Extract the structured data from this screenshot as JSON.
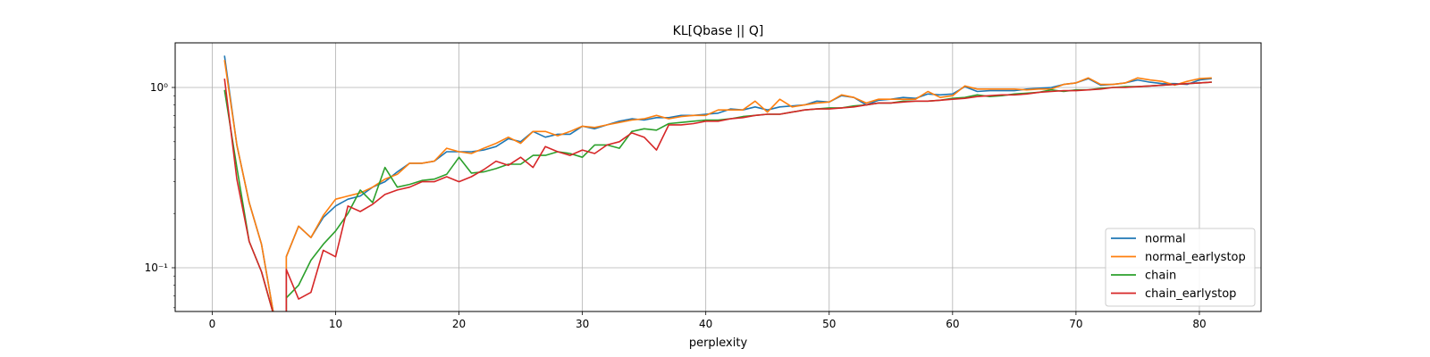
{
  "chart_data": {
    "type": "line",
    "title": "KL[Qbase || Q]",
    "xlabel": "perplexity",
    "ylabel": "",
    "yscale": "log",
    "xlim": [
      -3,
      85
    ],
    "ylim": [
      0.058,
      1.8
    ],
    "xticks": [
      0,
      10,
      20,
      30,
      40,
      50,
      60,
      70,
      80
    ],
    "xtick_labels": [
      "0",
      "10",
      "20",
      "30",
      "40",
      "50",
      "60",
      "70",
      "80"
    ],
    "yticks": [
      0.1,
      1
    ],
    "ytick_labels": [
      "10⁻¹",
      "10⁰"
    ],
    "grid": true,
    "legend_position": "lower-right",
    "x": [
      1,
      2,
      3,
      4,
      5,
      6,
      7,
      8,
      9,
      10,
      11,
      12,
      13,
      14,
      15,
      16,
      17,
      18,
      19,
      20,
      21,
      22,
      23,
      24,
      25,
      26,
      27,
      28,
      29,
      30,
      31,
      32,
      33,
      34,
      35,
      36,
      37,
      38,
      39,
      40,
      41,
      42,
      43,
      44,
      45,
      46,
      47,
      48,
      49,
      50,
      51,
      52,
      53,
      54,
      55,
      56,
      57,
      58,
      59,
      60,
      61,
      62,
      63,
      64,
      65,
      66,
      67,
      68,
      69,
      70,
      71,
      72,
      73,
      74,
      75,
      76,
      77,
      78,
      79,
      80,
      81
    ],
    "series": [
      {
        "name": "normal",
        "color": "#1f77b4",
        "values": [
          1.5,
          0.48,
          0.23,
          0.135,
          null,
          0.115,
          0.17,
          0.147,
          0.19,
          0.22,
          0.24,
          0.25,
          0.28,
          0.3,
          0.34,
          0.38,
          0.38,
          0.39,
          0.44,
          0.44,
          0.44,
          0.45,
          0.47,
          0.52,
          0.5,
          0.57,
          0.53,
          0.55,
          0.55,
          0.61,
          0.59,
          0.62,
          0.65,
          0.67,
          0.66,
          0.68,
          0.68,
          0.7,
          0.7,
          0.71,
          0.72,
          0.76,
          0.75,
          0.78,
          0.75,
          0.78,
          0.79,
          0.8,
          0.84,
          0.83,
          0.9,
          0.88,
          0.8,
          0.85,
          0.86,
          0.88,
          0.87,
          0.92,
          0.91,
          0.92,
          1.01,
          0.95,
          0.96,
          0.96,
          0.96,
          0.98,
          0.99,
          1.0,
          1.04,
          1.06,
          1.12,
          1.03,
          1.04,
          1.06,
          1.1,
          1.07,
          1.05,
          1.05,
          1.04,
          1.1,
          1.12
        ]
      },
      {
        "name": "normal_earlystop",
        "color": "#ff7f0e",
        "values": [
          1.42,
          0.48,
          0.23,
          0.135,
          null,
          0.115,
          0.17,
          0.147,
          0.195,
          0.24,
          0.25,
          0.26,
          0.28,
          0.31,
          0.33,
          0.38,
          0.38,
          0.39,
          0.46,
          0.44,
          0.43,
          0.46,
          0.49,
          0.53,
          0.49,
          0.57,
          0.57,
          0.54,
          0.57,
          0.61,
          0.6,
          0.62,
          0.64,
          0.66,
          0.67,
          0.7,
          0.67,
          0.69,
          0.7,
          0.7,
          0.75,
          0.75,
          0.75,
          0.84,
          0.73,
          0.86,
          0.78,
          0.8,
          0.82,
          0.83,
          0.91,
          0.88,
          0.82,
          0.86,
          0.86,
          0.86,
          0.86,
          0.95,
          0.88,
          0.9,
          1.02,
          0.98,
          0.98,
          0.98,
          0.98,
          0.97,
          0.98,
          0.98,
          1.04,
          1.06,
          1.13,
          1.04,
          1.04,
          1.06,
          1.13,
          1.1,
          1.08,
          1.03,
          1.08,
          1.12,
          1.13
        ]
      },
      {
        "name": "chain",
        "color": "#2ca02c",
        "values": [
          0.97,
          0.36,
          0.14,
          0.095,
          null,
          0.068,
          0.08,
          0.11,
          0.135,
          0.16,
          0.2,
          0.27,
          0.23,
          0.36,
          0.28,
          0.29,
          0.305,
          0.31,
          0.33,
          0.41,
          0.335,
          0.34,
          0.355,
          0.375,
          0.375,
          0.42,
          0.42,
          0.44,
          0.43,
          0.41,
          0.48,
          0.48,
          0.46,
          0.57,
          0.59,
          0.58,
          0.63,
          0.64,
          0.65,
          0.66,
          0.66,
          0.67,
          0.69,
          0.7,
          0.71,
          0.71,
          0.73,
          0.75,
          0.76,
          0.77,
          0.77,
          0.79,
          0.8,
          0.82,
          0.82,
          0.84,
          0.84,
          0.84,
          0.85,
          0.87,
          0.88,
          0.91,
          0.89,
          0.9,
          0.92,
          0.93,
          0.94,
          0.97,
          0.95,
          0.97,
          0.97,
          0.99,
          1.0,
          1.01,
          1.01,
          1.02,
          1.03,
          1.04,
          1.05,
          1.06,
          1.07
        ]
      },
      {
        "name": "chain_earlystop",
        "color": "#d62728",
        "values": [
          1.12,
          0.31,
          0.14,
          0.095,
          null,
          0.098,
          0.067,
          0.073,
          0.125,
          0.115,
          0.22,
          0.205,
          0.225,
          0.255,
          0.27,
          0.28,
          0.3,
          0.3,
          0.32,
          0.3,
          0.32,
          0.35,
          0.39,
          0.37,
          0.41,
          0.36,
          0.47,
          0.44,
          0.42,
          0.45,
          0.43,
          0.48,
          0.5,
          0.56,
          0.53,
          0.45,
          0.62,
          0.62,
          0.63,
          0.65,
          0.65,
          0.67,
          0.68,
          0.7,
          0.71,
          0.71,
          0.73,
          0.75,
          0.76,
          0.76,
          0.77,
          0.78,
          0.8,
          0.82,
          0.82,
          0.83,
          0.84,
          0.84,
          0.85,
          0.86,
          0.87,
          0.89,
          0.9,
          0.91,
          0.91,
          0.92,
          0.94,
          0.95,
          0.96,
          0.96,
          0.97,
          0.98,
          1.0,
          1.0,
          1.01,
          1.02,
          1.03,
          1.04,
          1.05,
          1.06,
          1.07
        ]
      }
    ]
  }
}
